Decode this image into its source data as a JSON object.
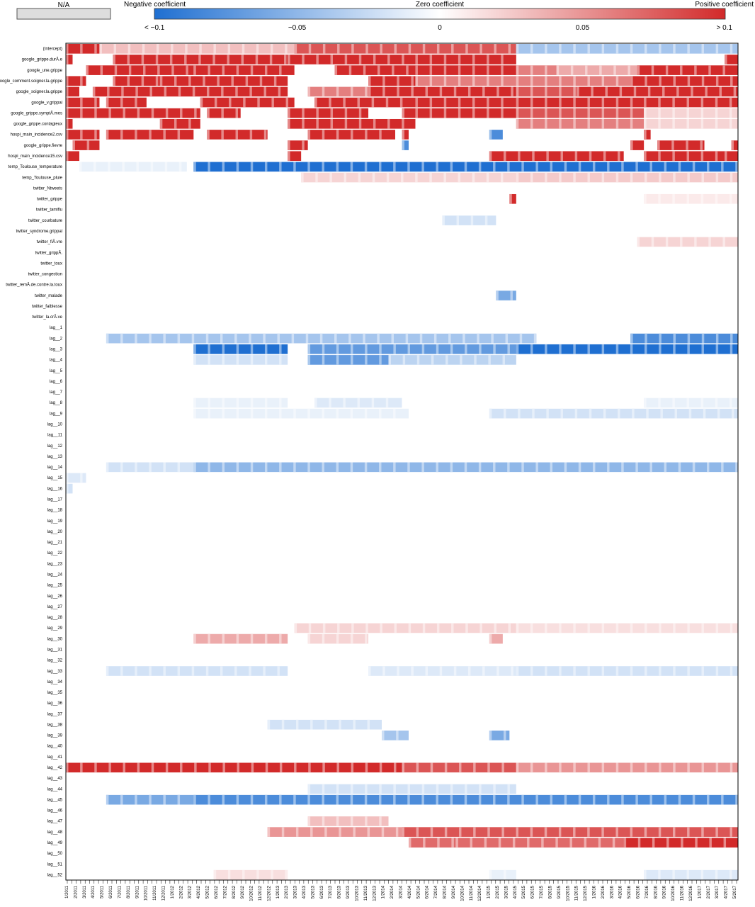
{
  "legend": {
    "na_label": "N/A",
    "na_color": "#dddddd",
    "negative_label": "Negative coefficient",
    "zero_label": "Zero coefficient",
    "positive_label": "Positive coefficient",
    "scale_ticks": [
      "< −0.1",
      "−0.05",
      "0",
      "0.05",
      "> 0.1"
    ],
    "scale_values": [
      -0.1,
      -0.05,
      0,
      0.05,
      0.1
    ],
    "negative_color": "#1f6fd1",
    "zero_color": "#ffffff",
    "positive_color": "#d22a2a"
  },
  "chart_data": {
    "type": "heatmap",
    "title": "",
    "xlabel": "",
    "ylabel": "",
    "value_range": [
      -0.1,
      0.1
    ],
    "grid": false,
    "legend_position": "top",
    "rows": [
      "(Intercept)",
      "google_grippe.durÃ.e",
      "google_une.grippe",
      "google_comment.soigner.la.grippe",
      "google_soigner.la.grippe",
      "google_v.grippal",
      "google_grippe.symptÃ.mes",
      "google_grippe.contagieux",
      "hospi_main_incidence2.csv",
      "google_grippe.fievre",
      "hospi_main_incidence15.csv",
      "temp_Toulouse_temperature",
      "temp_Toulouse_pluie",
      "twitter_Ntweets",
      "twitter_grippe",
      "twitter_tamiflu",
      "twitter_courbature",
      "twitter_syndrome.grippal",
      "twitter_fiÃ.vre",
      "twitter_grippÃ.",
      "twitter_toux",
      "twitter_congestion",
      "twitter_remÃ.de.contre.la.toux",
      "twitter_malade",
      "twitter_faiblesse",
      "twitter_la.crÃ.ve",
      "lag__1",
      "lag__2",
      "lag__3",
      "lag__4",
      "lag__5",
      "lag__6",
      "lag__7",
      "lag__8",
      "lag__9",
      "lag__10",
      "lag__11",
      "lag__12",
      "lag__13",
      "lag__14",
      "lag__15",
      "lag__16",
      "lag__17",
      "lag__18",
      "lag__19",
      "lag__20",
      "lag__21",
      "lag__22",
      "lag__23",
      "lag__24",
      "lag__25",
      "lag__26",
      "lag__27",
      "lag__28",
      "lag__29",
      "lag__30",
      "lag__31",
      "lag__32",
      "lag__33",
      "lag__34",
      "lag__35",
      "lag__36",
      "lag__37",
      "lag__38",
      "lag__39",
      "lag__40",
      "lag__41",
      "lag__42",
      "lag__43",
      "lag__44",
      "lag__45",
      "lag__46",
      "lag__47",
      "lag__48",
      "lag__49",
      "lag__50",
      "lag__51",
      "lag__52"
    ],
    "x_tick_labels": [
      "1/2011",
      "2/2011",
      "3/2011",
      "4/2011",
      "5/2011",
      "6/2011",
      "7/2011",
      "8/2011",
      "9/2011",
      "10/2011",
      "11/2011",
      "12/2011",
      "1/2012",
      "2/2012",
      "3/2012",
      "4/2012",
      "5/2012",
      "6/2012",
      "7/2012",
      "8/2012",
      "9/2012",
      "10/2012",
      "11/2012",
      "12/2012",
      "1/2013",
      "2/2013",
      "3/2013",
      "4/2013",
      "5/2013",
      "6/2013",
      "7/2013",
      "8/2013",
      "9/2013",
      "10/2013",
      "11/2013",
      "12/2013",
      "1/2014",
      "2/2014",
      "3/2014",
      "4/2014",
      "5/2014",
      "6/2014",
      "7/2014",
      "8/2014",
      "9/2014",
      "10/2014",
      "11/2014",
      "12/2014",
      "1/2015",
      "2/2015",
      "3/2015",
      "4/2015",
      "5/2015",
      "6/2015",
      "7/2015",
      "8/2015",
      "9/2015",
      "10/2015",
      "11/2015",
      "12/2015",
      "1/2016",
      "2/2016",
      "3/2016",
      "4/2016",
      "5/2016",
      "6/2016",
      "7/2016",
      "8/2016",
      "9/2016",
      "10/2016",
      "11/2016",
      "12/2016",
      "1/2017",
      "2/2017",
      "3/2017",
      "4/2017",
      "5/2017"
    ],
    "bands": [
      {
        "row": "(Intercept)",
        "segments": [
          [
            0,
            0.05,
            0.1
          ],
          [
            0.05,
            0.34,
            0.03
          ],
          [
            0.34,
            0.67,
            0.08
          ],
          [
            0.67,
            1,
            -0.04
          ]
        ]
      },
      {
        "row": "google_grippe.durÃ.e",
        "segments": [
          [
            0,
            0.01,
            0.1
          ],
          [
            0.07,
            0.33,
            0.1
          ],
          [
            0.33,
            0.52,
            0.1
          ],
          [
            0.52,
            0.67,
            0.1
          ],
          [
            0.98,
            1,
            0.1
          ]
        ]
      },
      {
        "row": "google_une.grippe",
        "segments": [
          [
            0.03,
            0.19,
            0.1
          ],
          [
            0.19,
            0.34,
            0.1
          ],
          [
            0.4,
            0.52,
            0.1
          ],
          [
            0.52,
            0.67,
            0.1
          ],
          [
            0.67,
            0.73,
            0.06
          ],
          [
            0.73,
            0.85,
            0.04
          ],
          [
            0.85,
            1,
            0.1
          ]
        ]
      },
      {
        "row": "google_comment.soigner.la.grippe",
        "segments": [
          [
            0,
            0.03,
            0.1
          ],
          [
            0.07,
            0.14,
            0.1
          ],
          [
            0.14,
            0.33,
            0.1
          ],
          [
            0.45,
            0.52,
            0.1
          ],
          [
            0.52,
            0.67,
            0.06
          ],
          [
            0.67,
            0.84,
            0.06
          ],
          [
            0.84,
            1,
            0.1
          ]
        ]
      },
      {
        "row": "google_soigner.la.grippe",
        "segments": [
          [
            0,
            0.02,
            0.1
          ],
          [
            0.04,
            0.33,
            0.1
          ],
          [
            0.36,
            0.45,
            0.06
          ],
          [
            0.45,
            0.67,
            0.1
          ],
          [
            0.67,
            0.76,
            0.08
          ],
          [
            0.76,
            1,
            0.1
          ]
        ]
      },
      {
        "row": "google_v.grippal",
        "segments": [
          [
            0,
            0.05,
            0.1
          ],
          [
            0.06,
            0.12,
            0.1
          ],
          [
            0.2,
            0.34,
            0.1
          ],
          [
            0.37,
            0.52,
            0.1
          ],
          [
            0.52,
            0.67,
            0.1
          ],
          [
            0.67,
            0.86,
            0.1
          ],
          [
            0.86,
            1,
            0.1
          ]
        ]
      },
      {
        "row": "google_grippe.symptÃ.mes",
        "segments": [
          [
            0,
            0.2,
            0.1
          ],
          [
            0.21,
            0.26,
            0.1
          ],
          [
            0.33,
            0.45,
            0.1
          ],
          [
            0.5,
            0.52,
            0.1
          ],
          [
            0.52,
            0.67,
            0.1
          ],
          [
            0.67,
            0.86,
            0.08
          ],
          [
            0.86,
            1,
            0.02
          ]
        ]
      },
      {
        "row": "google_grippe.contagieux",
        "segments": [
          [
            0,
            0.01,
            0.1
          ],
          [
            0.14,
            0.2,
            0.1
          ],
          [
            0.33,
            0.52,
            0.1
          ],
          [
            0.67,
            0.86,
            0.06
          ],
          [
            0.86,
            1,
            0.02
          ]
        ]
      },
      {
        "row": "hospi_main_incidence2.csv",
        "segments": [
          [
            0,
            0.05,
            0.1
          ],
          [
            0.06,
            0.19,
            0.1
          ],
          [
            0.21,
            0.3,
            0.1
          ],
          [
            0.36,
            0.49,
            0.1
          ],
          [
            0.5,
            0.51,
            0.1
          ],
          [
            0.63,
            0.65,
            -0.08
          ],
          [
            0.86,
            0.87,
            0.1
          ]
        ]
      },
      {
        "row": "google_grippe.fievre",
        "segments": [
          [
            0.01,
            0.05,
            0.1
          ],
          [
            0.33,
            0.36,
            0.1
          ],
          [
            0.5,
            0.51,
            -0.08
          ],
          [
            0.84,
            0.86,
            0.1
          ],
          [
            0.88,
            0.95,
            0.1
          ],
          [
            0.99,
            1,
            0.1
          ]
        ]
      },
      {
        "row": "hospi_main_incidence15.csv",
        "segments": [
          [
            0,
            0.02,
            0.1
          ],
          [
            0.33,
            0.35,
            0.1
          ],
          [
            0.63,
            0.83,
            0.1
          ],
          [
            0.86,
            0.98,
            0.1
          ],
          [
            0.98,
            1,
            0.1
          ]
        ]
      },
      {
        "row": "temp_Toulouse_temperature",
        "segments": [
          [
            0.02,
            0.18,
            -0.01
          ],
          [
            0.19,
            1,
            -0.1
          ]
        ]
      },
      {
        "row": "temp_Toulouse_pluie",
        "segments": [
          [
            0.35,
            0.67,
            0.02
          ],
          [
            0.67,
            1,
            0.025
          ]
        ]
      },
      {
        "row": "twitter_grippe",
        "segments": [
          [
            0.66,
            0.67,
            0.1
          ],
          [
            0.86,
            1,
            0.01
          ]
        ]
      },
      {
        "row": "twitter_courbature",
        "segments": [
          [
            0.56,
            0.64,
            -0.02
          ]
        ]
      },
      {
        "row": "twitter_fiÃ.vre",
        "segments": [
          [
            0.85,
            1,
            0.02
          ]
        ]
      },
      {
        "row": "twitter_malade",
        "segments": [
          [
            0.64,
            0.67,
            -0.06
          ]
        ]
      },
      {
        "row": "lag__2",
        "segments": [
          [
            0.06,
            0.7,
            -0.04
          ],
          [
            0.84,
            1,
            -0.08
          ]
        ]
      },
      {
        "row": "lag__3",
        "segments": [
          [
            0.19,
            0.33,
            -0.1
          ],
          [
            0.36,
            0.67,
            -0.07
          ],
          [
            0.67,
            1,
            -0.1
          ]
        ]
      },
      {
        "row": "lag__4",
        "segments": [
          [
            0.19,
            0.33,
            -0.02
          ],
          [
            0.36,
            0.48,
            -0.07
          ],
          [
            0.48,
            0.67,
            -0.03
          ]
        ]
      },
      {
        "row": "lag__8",
        "segments": [
          [
            0.19,
            0.33,
            -0.01
          ],
          [
            0.37,
            0.5,
            -0.015
          ],
          [
            0.86,
            1,
            -0.01
          ]
        ]
      },
      {
        "row": "lag__9",
        "segments": [
          [
            0.19,
            0.51,
            -0.01
          ],
          [
            0.63,
            1,
            -0.02
          ]
        ]
      },
      {
        "row": "lag__14",
        "segments": [
          [
            0.06,
            0.19,
            -0.02
          ],
          [
            0.19,
            1,
            -0.05
          ]
        ]
      },
      {
        "row": "lag__15",
        "segments": [
          [
            0,
            0.03,
            -0.015
          ]
        ]
      },
      {
        "row": "lag__16",
        "segments": [
          [
            0,
            0.01,
            -0.02
          ]
        ]
      },
      {
        "row": "lag__29",
        "segments": [
          [
            0.34,
            0.67,
            0.02
          ],
          [
            0.67,
            1,
            0.015
          ]
        ]
      },
      {
        "row": "lag__30",
        "segments": [
          [
            0.19,
            0.33,
            0.04
          ],
          [
            0.36,
            0.45,
            0.02
          ],
          [
            0.63,
            0.65,
            0.04
          ]
        ]
      },
      {
        "row": "lag__33",
        "segments": [
          [
            0.06,
            0.33,
            -0.02
          ],
          [
            0.45,
            0.67,
            -0.015
          ],
          [
            0.67,
            1,
            -0.02
          ]
        ]
      },
      {
        "row": "lag__38",
        "segments": [
          [
            0.3,
            0.47,
            -0.02
          ]
        ]
      },
      {
        "row": "lag__39",
        "segments": [
          [
            0.47,
            0.51,
            -0.04
          ],
          [
            0.63,
            0.66,
            -0.06
          ]
        ]
      },
      {
        "row": "lag__42",
        "segments": [
          [
            0,
            0.5,
            0.1
          ],
          [
            0.5,
            0.67,
            0.08
          ],
          [
            0.67,
            1,
            0.05
          ]
        ]
      },
      {
        "row": "lag__44",
        "segments": [
          [
            0.36,
            0.67,
            -0.02
          ]
        ]
      },
      {
        "row": "lag__45",
        "segments": [
          [
            0.06,
            0.19,
            -0.06
          ],
          [
            0.19,
            1,
            -0.08
          ]
        ]
      },
      {
        "row": "lag__47",
        "segments": [
          [
            0.36,
            0.48,
            0.03
          ]
        ]
      },
      {
        "row": "lag__48",
        "segments": [
          [
            0.3,
            0.5,
            0.05
          ],
          [
            0.5,
            1,
            0.08
          ]
        ]
      },
      {
        "row": "lag__49",
        "segments": [
          [
            0.51,
            0.58,
            0.07
          ],
          [
            0.58,
            0.83,
            0.07
          ],
          [
            0.83,
            1,
            0.1
          ]
        ]
      },
      {
        "row": "lag__52",
        "segments": [
          [
            0.22,
            0.33,
            0.015
          ],
          [
            0.63,
            0.67,
            -0.01
          ],
          [
            0.86,
            1,
            -0.015
          ]
        ]
      }
    ]
  }
}
